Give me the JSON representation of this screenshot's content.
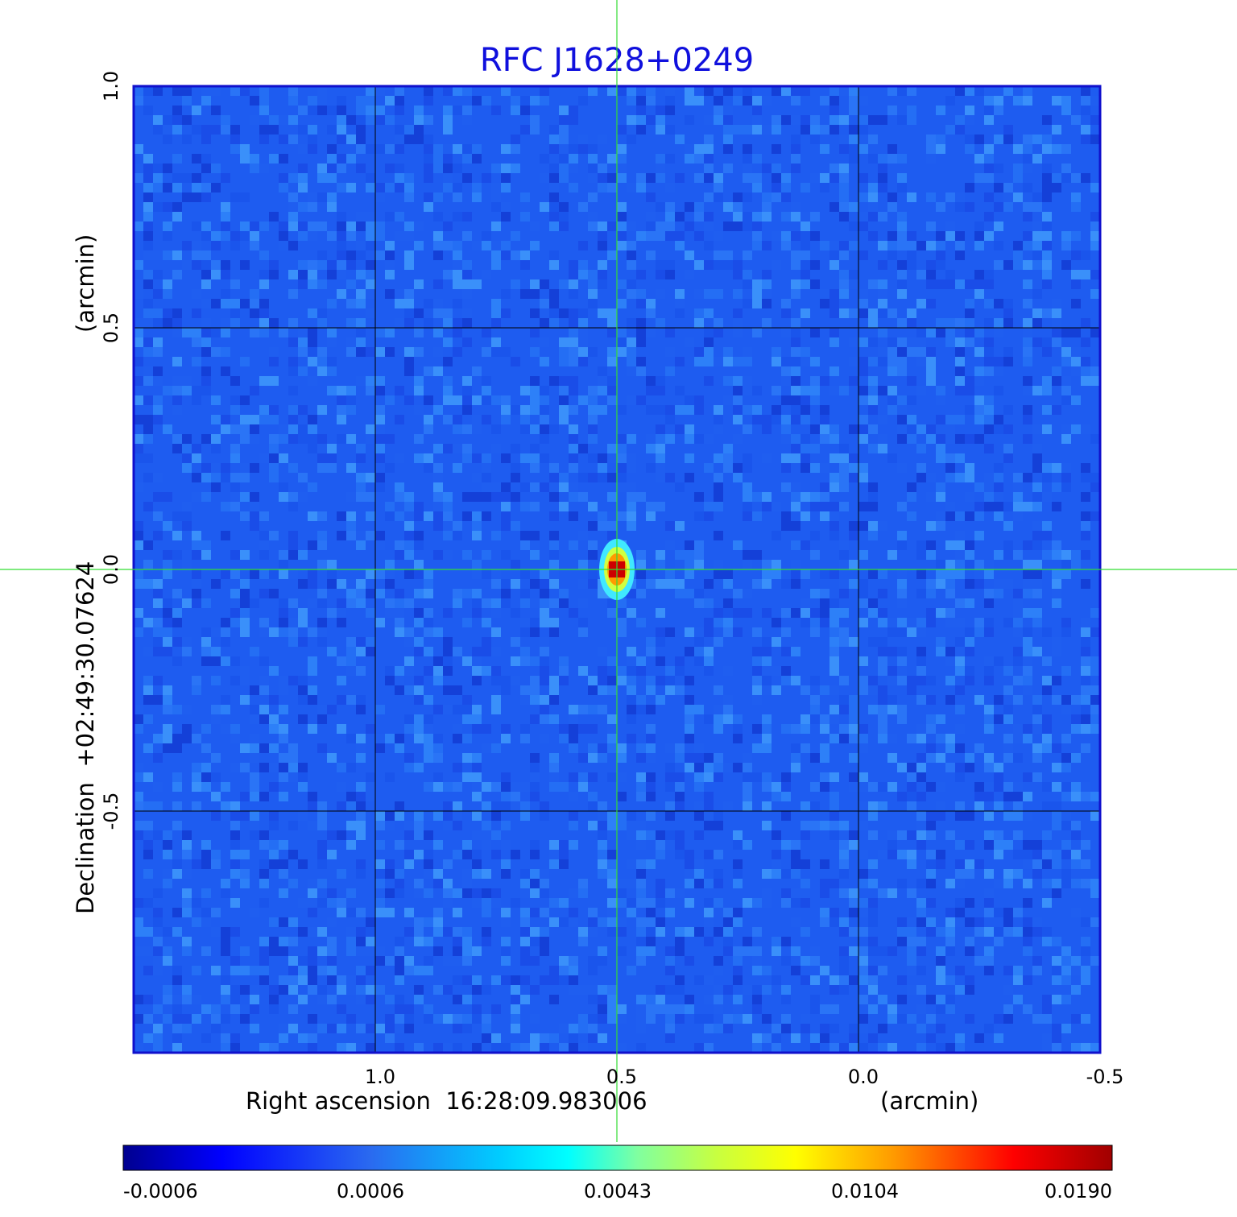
{
  "chart_data": {
    "type": "heatmap",
    "title": "RFC J1628+0249",
    "xlabel": "Right ascension  16:28:09.983006",
    "xunit": "(arcmin)",
    "ylabel": "Declination  +02:49:30.07624",
    "yunit": "(arcmin)",
    "xlim": [
      1.5,
      -0.5
    ],
    "ylim": [
      -1.0,
      1.0
    ],
    "x_ticks": [
      {
        "value": 1.0,
        "label": "1.0"
      },
      {
        "value": 0.5,
        "label": "0.5"
      },
      {
        "value": 0.0,
        "label": "0.0"
      },
      {
        "value": -0.5,
        "label": "-0.5"
      }
    ],
    "y_ticks": [
      {
        "value": 1.0,
        "label": "1.0"
      },
      {
        "value": 0.5,
        "label": "0.5"
      },
      {
        "value": 0.0,
        "label": "0.0"
      },
      {
        "value": -0.5,
        "label": "-0.5"
      }
    ],
    "grid": true,
    "crosshair": {
      "x": 0.5,
      "y": 0.0,
      "color": "#33dd33"
    },
    "source_peak": {
      "x": 0.5,
      "y": 0.0,
      "value": 0.019
    },
    "colorbar": {
      "colormap": "jet",
      "ticks": [
        {
          "value": -0.0006,
          "label": "-0.0006"
        },
        {
          "value": 0.0006,
          "label": "0.0006"
        },
        {
          "value": 0.0043,
          "label": "0.0043"
        },
        {
          "value": 0.0104,
          "label": "0.0104"
        },
        {
          "value": 0.019,
          "label": "0.0190"
        }
      ]
    },
    "colors": {
      "title": "#1010dd",
      "frame": "#1010cc",
      "gridlines": "#000000",
      "background_map": "#1e5cf0"
    }
  }
}
